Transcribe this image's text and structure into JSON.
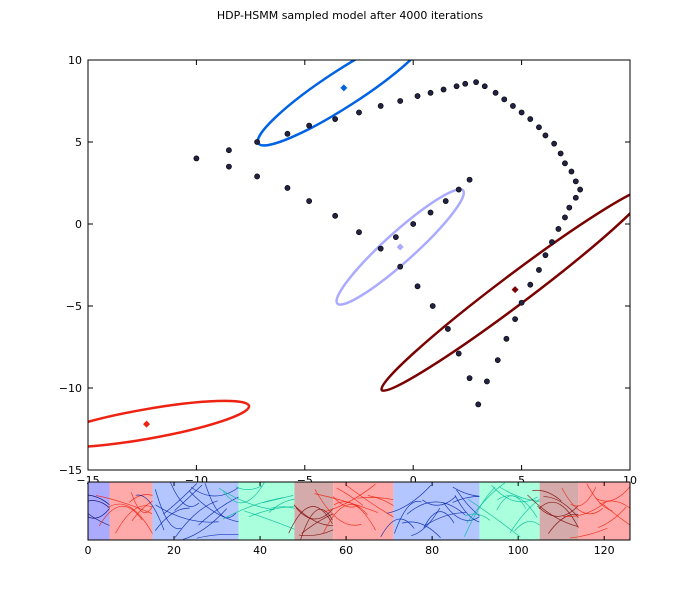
{
  "title": "HDP-HSMM sampled model after 4000 iterations",
  "chart_data": [
    {
      "type": "scatter",
      "title": "HDP-HSMM sampled model after 4000 iterations",
      "xlim": [
        -15,
        10
      ],
      "ylim": [
        -15,
        10
      ],
      "xticks": [
        -15,
        -10,
        -5,
        0,
        5,
        10
      ],
      "yticks": [
        -15,
        -10,
        -5,
        0,
        5,
        10
      ],
      "xtick_labels": [
        "−15",
        "−10",
        "−5",
        "0",
        "5",
        "10"
      ],
      "ytick_labels": [
        "−15",
        "−10",
        "−5",
        "0",
        "5",
        "10"
      ],
      "grid": false,
      "points": [
        [
          -10.0,
          4.0
        ],
        [
          -8.5,
          4.5
        ],
        [
          -8.5,
          3.5
        ],
        [
          -7.2,
          5.0
        ],
        [
          -7.2,
          2.9
        ],
        [
          -5.8,
          5.5
        ],
        [
          -5.8,
          2.2
        ],
        [
          -4.8,
          6.0
        ],
        [
          -4.8,
          1.4
        ],
        [
          -3.6,
          6.4
        ],
        [
          -3.6,
          0.5
        ],
        [
          -2.5,
          6.8
        ],
        [
          -2.5,
          -0.5
        ],
        [
          -1.5,
          7.2
        ],
        [
          -1.5,
          -1.5
        ],
        [
          -0.6,
          7.5
        ],
        [
          -0.8,
          -0.8
        ],
        [
          -0.6,
          -2.6
        ],
        [
          0.2,
          7.8
        ],
        [
          0.0,
          0.0
        ],
        [
          0.2,
          -3.8
        ],
        [
          0.8,
          8.0
        ],
        [
          0.8,
          0.7
        ],
        [
          0.9,
          -5.0
        ],
        [
          1.4,
          8.2
        ],
        [
          1.5,
          1.4
        ],
        [
          1.6,
          -6.4
        ],
        [
          2.0,
          8.4
        ],
        [
          2.1,
          2.1
        ],
        [
          2.1,
          -7.9
        ],
        [
          2.4,
          8.55
        ],
        [
          2.6,
          2.7
        ],
        [
          2.6,
          -9.4
        ],
        [
          2.9,
          8.65
        ],
        [
          3.0,
          -11.0
        ],
        [
          3.3,
          8.4
        ],
        [
          3.4,
          -9.6
        ],
        [
          3.8,
          8.0
        ],
        [
          3.9,
          -8.3
        ],
        [
          4.2,
          7.6
        ],
        [
          4.3,
          -7.0
        ],
        [
          4.6,
          7.2
        ],
        [
          4.7,
          -5.8
        ],
        [
          5.0,
          6.8
        ],
        [
          5.0,
          -4.8
        ],
        [
          5.4,
          6.4
        ],
        [
          5.4,
          -3.7
        ],
        [
          5.8,
          5.9
        ],
        [
          5.8,
          -2.8
        ],
        [
          6.1,
          5.4
        ],
        [
          6.1,
          -1.9
        ],
        [
          6.5,
          4.9
        ],
        [
          6.4,
          -1.1
        ],
        [
          6.8,
          4.3
        ],
        [
          6.7,
          -0.3
        ],
        [
          7.0,
          3.7
        ],
        [
          7.0,
          0.4
        ],
        [
          7.3,
          3.2
        ],
        [
          7.2,
          1.0
        ],
        [
          7.5,
          2.6
        ],
        [
          7.5,
          1.6
        ],
        [
          7.7,
          2.1
        ]
      ],
      "ellipses": [
        {
          "color": "#0062e5",
          "cx": -3.2,
          "cy": 8.3,
          "rx": 4.7,
          "ry": 1.1,
          "angle_deg": 33
        },
        {
          "color": "#aaaaff",
          "cx": -0.6,
          "cy": -1.4,
          "rx": 3.9,
          "ry": 0.9,
          "angle_deg": 42
        },
        {
          "color": "#7b0000",
          "cx": 4.7,
          "cy": -4.0,
          "rx": 7.7,
          "ry": 0.9,
          "angle_deg": 37
        },
        {
          "color": "#ee2211",
          "cx": -12.3,
          "cy": -12.2,
          "rx": 4.8,
          "ry": 0.9,
          "angle_deg": 10
        }
      ],
      "centers": [
        {
          "color": "#0062e5",
          "x": -3.2,
          "y": 8.3
        },
        {
          "color": "#aaaaff",
          "x": -0.6,
          "y": -1.4
        },
        {
          "color": "#7b0000",
          "x": 4.7,
          "y": -4.0
        },
        {
          "color": "#ee2211",
          "x": -12.3,
          "y": -12.2
        }
      ]
    },
    {
      "type": "area",
      "xlim": [
        0,
        126
      ],
      "xticks": [
        0,
        20,
        40,
        60,
        80,
        100,
        120
      ],
      "xtick_labels": [
        "0",
        "20",
        "40",
        "60",
        "80",
        "100",
        "120"
      ],
      "segments": [
        {
          "start": 0,
          "end": 5,
          "color": "#aaaaff",
          "line_color": "#000066"
        },
        {
          "start": 5,
          "end": 15,
          "color": "#ffaaaa",
          "line_color": "#ee2211"
        },
        {
          "start": 15,
          "end": 35,
          "color": "#b3c6ff",
          "line_color": "#0022aa"
        },
        {
          "start": 35,
          "end": 48,
          "color": "#aaffdd",
          "line_color": "#00bb99"
        },
        {
          "start": 48,
          "end": 57,
          "color": "#d4aaaa",
          "line_color": "#7b0000"
        },
        {
          "start": 57,
          "end": 71,
          "color": "#ffaaaa",
          "line_color": "#ee2211"
        },
        {
          "start": 71,
          "end": 91,
          "color": "#b3c6ff",
          "line_color": "#0022aa"
        },
        {
          "start": 91,
          "end": 105,
          "color": "#aaffdd",
          "line_color": "#00bb99"
        },
        {
          "start": 105,
          "end": 114,
          "color": "#d4aaaa",
          "line_color": "#7b0000"
        },
        {
          "start": 114,
          "end": 126,
          "color": "#ffaaaa",
          "line_color": "#ee2211"
        }
      ]
    }
  ]
}
